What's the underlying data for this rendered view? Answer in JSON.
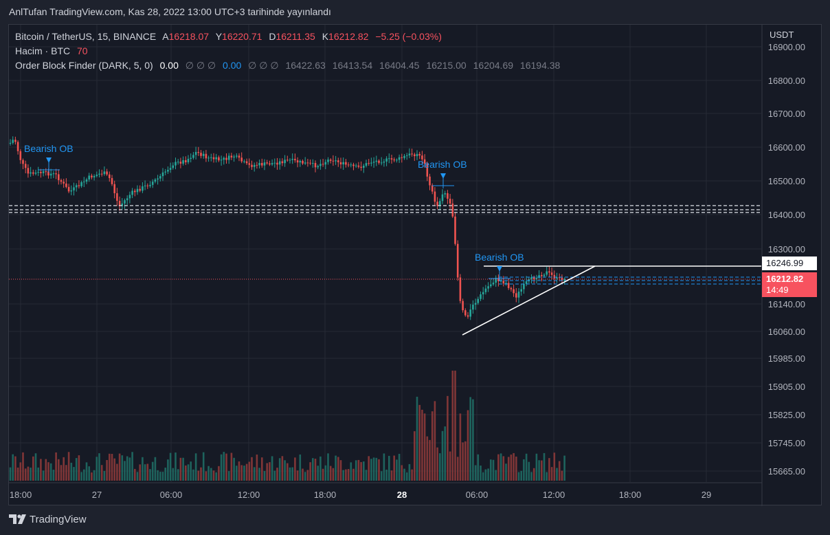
{
  "header": {
    "published": "AnlTufan TradingView.com, Kas 28, 2022 13:00 UTC+3 tarihinde yayınlandı"
  },
  "legend": {
    "symbol": "Bitcoin / TetherUS, 15, BINANCE",
    "open_label": "A",
    "open": "16218.07",
    "high_label": "Y",
    "high": "16220.71",
    "low_label": "D",
    "low": "16211.35",
    "close_label": "K",
    "close": "16212.82",
    "change": "−5.25 (−0.03%)",
    "volume_label": "Hacim · BTC",
    "volume_value": "70",
    "indicator": "Order Block Finder (DARK, 5, 0)",
    "ind_v1": "0.00",
    "ind_v2": "∅ ∅ ∅",
    "ind_v3": "0.00",
    "ind_v4": "∅ ∅ ∅",
    "ind_levels": [
      "16422.63",
      "16413.54",
      "16404.45",
      "16215.00",
      "16204.69",
      "16194.38"
    ]
  },
  "price_axis": {
    "currency": "USDT",
    "labels": [
      "16900.00",
      "16800.00",
      "16700.00",
      "16600.00",
      "16500.00",
      "16400.00",
      "16300.00",
      "16140.00",
      "16060.00",
      "15985.00",
      "15905.00",
      "15825.00",
      "15745.00",
      "15665.00"
    ],
    "level_tag": "16246.99",
    "last_price": "16212.82",
    "countdown": "14:49"
  },
  "time_axis": {
    "labels": [
      "18:00",
      "27",
      "06:00",
      "12:00",
      "18:00",
      "28",
      "06:00",
      "12:00",
      "18:00",
      "29"
    ]
  },
  "annotations": [
    "Bearish OB",
    "Bearish OB",
    "Bearish OB"
  ],
  "colors": {
    "up": "#26a69a",
    "down": "#ef5350",
    "ob": "#2196f3",
    "bg": "#161a25",
    "grid": "#262a35"
  },
  "brand": {
    "name": "TradingView"
  }
}
